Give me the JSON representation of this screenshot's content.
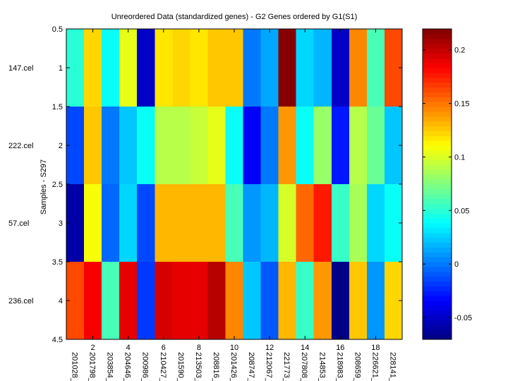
{
  "chart_data": {
    "type": "heatmap",
    "title": "Unreordered Data (standardized genes) - G2 Genes ordered by G1(S1)",
    "xlabel": "",
    "ylabel": "Samples - S297",
    "colormap": "jet",
    "clim": [
      -0.0704,
      0.2196
    ],
    "xlim": [
      0.5,
      19.5
    ],
    "ylim": [
      0.5,
      4.5
    ],
    "x_ticks": [
      2,
      4,
      6,
      8,
      10,
      12,
      14,
      16,
      18
    ],
    "x_tick_labels": [
      "2",
      "4",
      "6",
      "8",
      "10",
      "12",
      "14",
      "16",
      "18"
    ],
    "y_ticks": [
      0.5,
      1,
      1.5,
      2,
      2.5,
      3,
      3.5,
      4,
      4.5
    ],
    "y_tick_labels": [
      "0.5",
      "1",
      "1.5",
      "2",
      "2.5",
      "3",
      "3.5",
      "4",
      "4.5"
    ],
    "column_labels": [
      "201028_",
      "201798_",
      "203854_",
      "204646_",
      "200986_",
      "210427_",
      "201590_",
      "213503_",
      "208816_",
      "201426_",
      "208747_",
      "212067_",
      "221773_",
      "207808_",
      "214853_",
      "218983_",
      "208659_",
      "226621_",
      "228141_"
    ],
    "row_labels": [
      "147.cel",
      "222.cel",
      "57.cel",
      "236.cel"
    ],
    "values": [
      [
        0.05,
        0.123,
        0.041,
        0.104,
        -0.05,
        0.118,
        0.121,
        0.118,
        0.127,
        0.127,
        -0.001,
        0.013,
        0.218,
        0.027,
        0.018,
        -0.05,
        0.145,
        0.059,
        0.163
      ],
      [
        -0.014,
        0.127,
        -0.001,
        0.022,
        0.041,
        0.091,
        0.091,
        0.095,
        0.104,
        0.041,
        -0.036,
        -0.001,
        0.141,
        0.041,
        0.082,
        -0.027,
        0.089,
        0.068,
        0.022
      ],
      [
        -0.059,
        0.109,
        -0.005,
        0.027,
        -0.014,
        0.132,
        0.132,
        0.132,
        0.132,
        0.059,
        0.009,
        0.018,
        0.1,
        0.154,
        0.177,
        0.055,
        0.086,
        0.027,
        0.041
      ],
      [
        0.163,
        0.186,
        0.059,
        0.191,
        -0.018,
        0.195,
        0.191,
        0.191,
        0.204,
        0.143,
        0.022,
        -0.009,
        0.132,
        0.055,
        0.141,
        -0.068,
        0.127,
        0.009,
        0.123
      ]
    ],
    "colorbar": {
      "ticks": [
        -0.05,
        0,
        0.05,
        0.1,
        0.15,
        0.2
      ],
      "tick_labels": [
        "-0.05",
        "0",
        "0.05",
        "0.1",
        "0.15",
        "0.2"
      ],
      "placement": "right"
    },
    "grid": false
  }
}
